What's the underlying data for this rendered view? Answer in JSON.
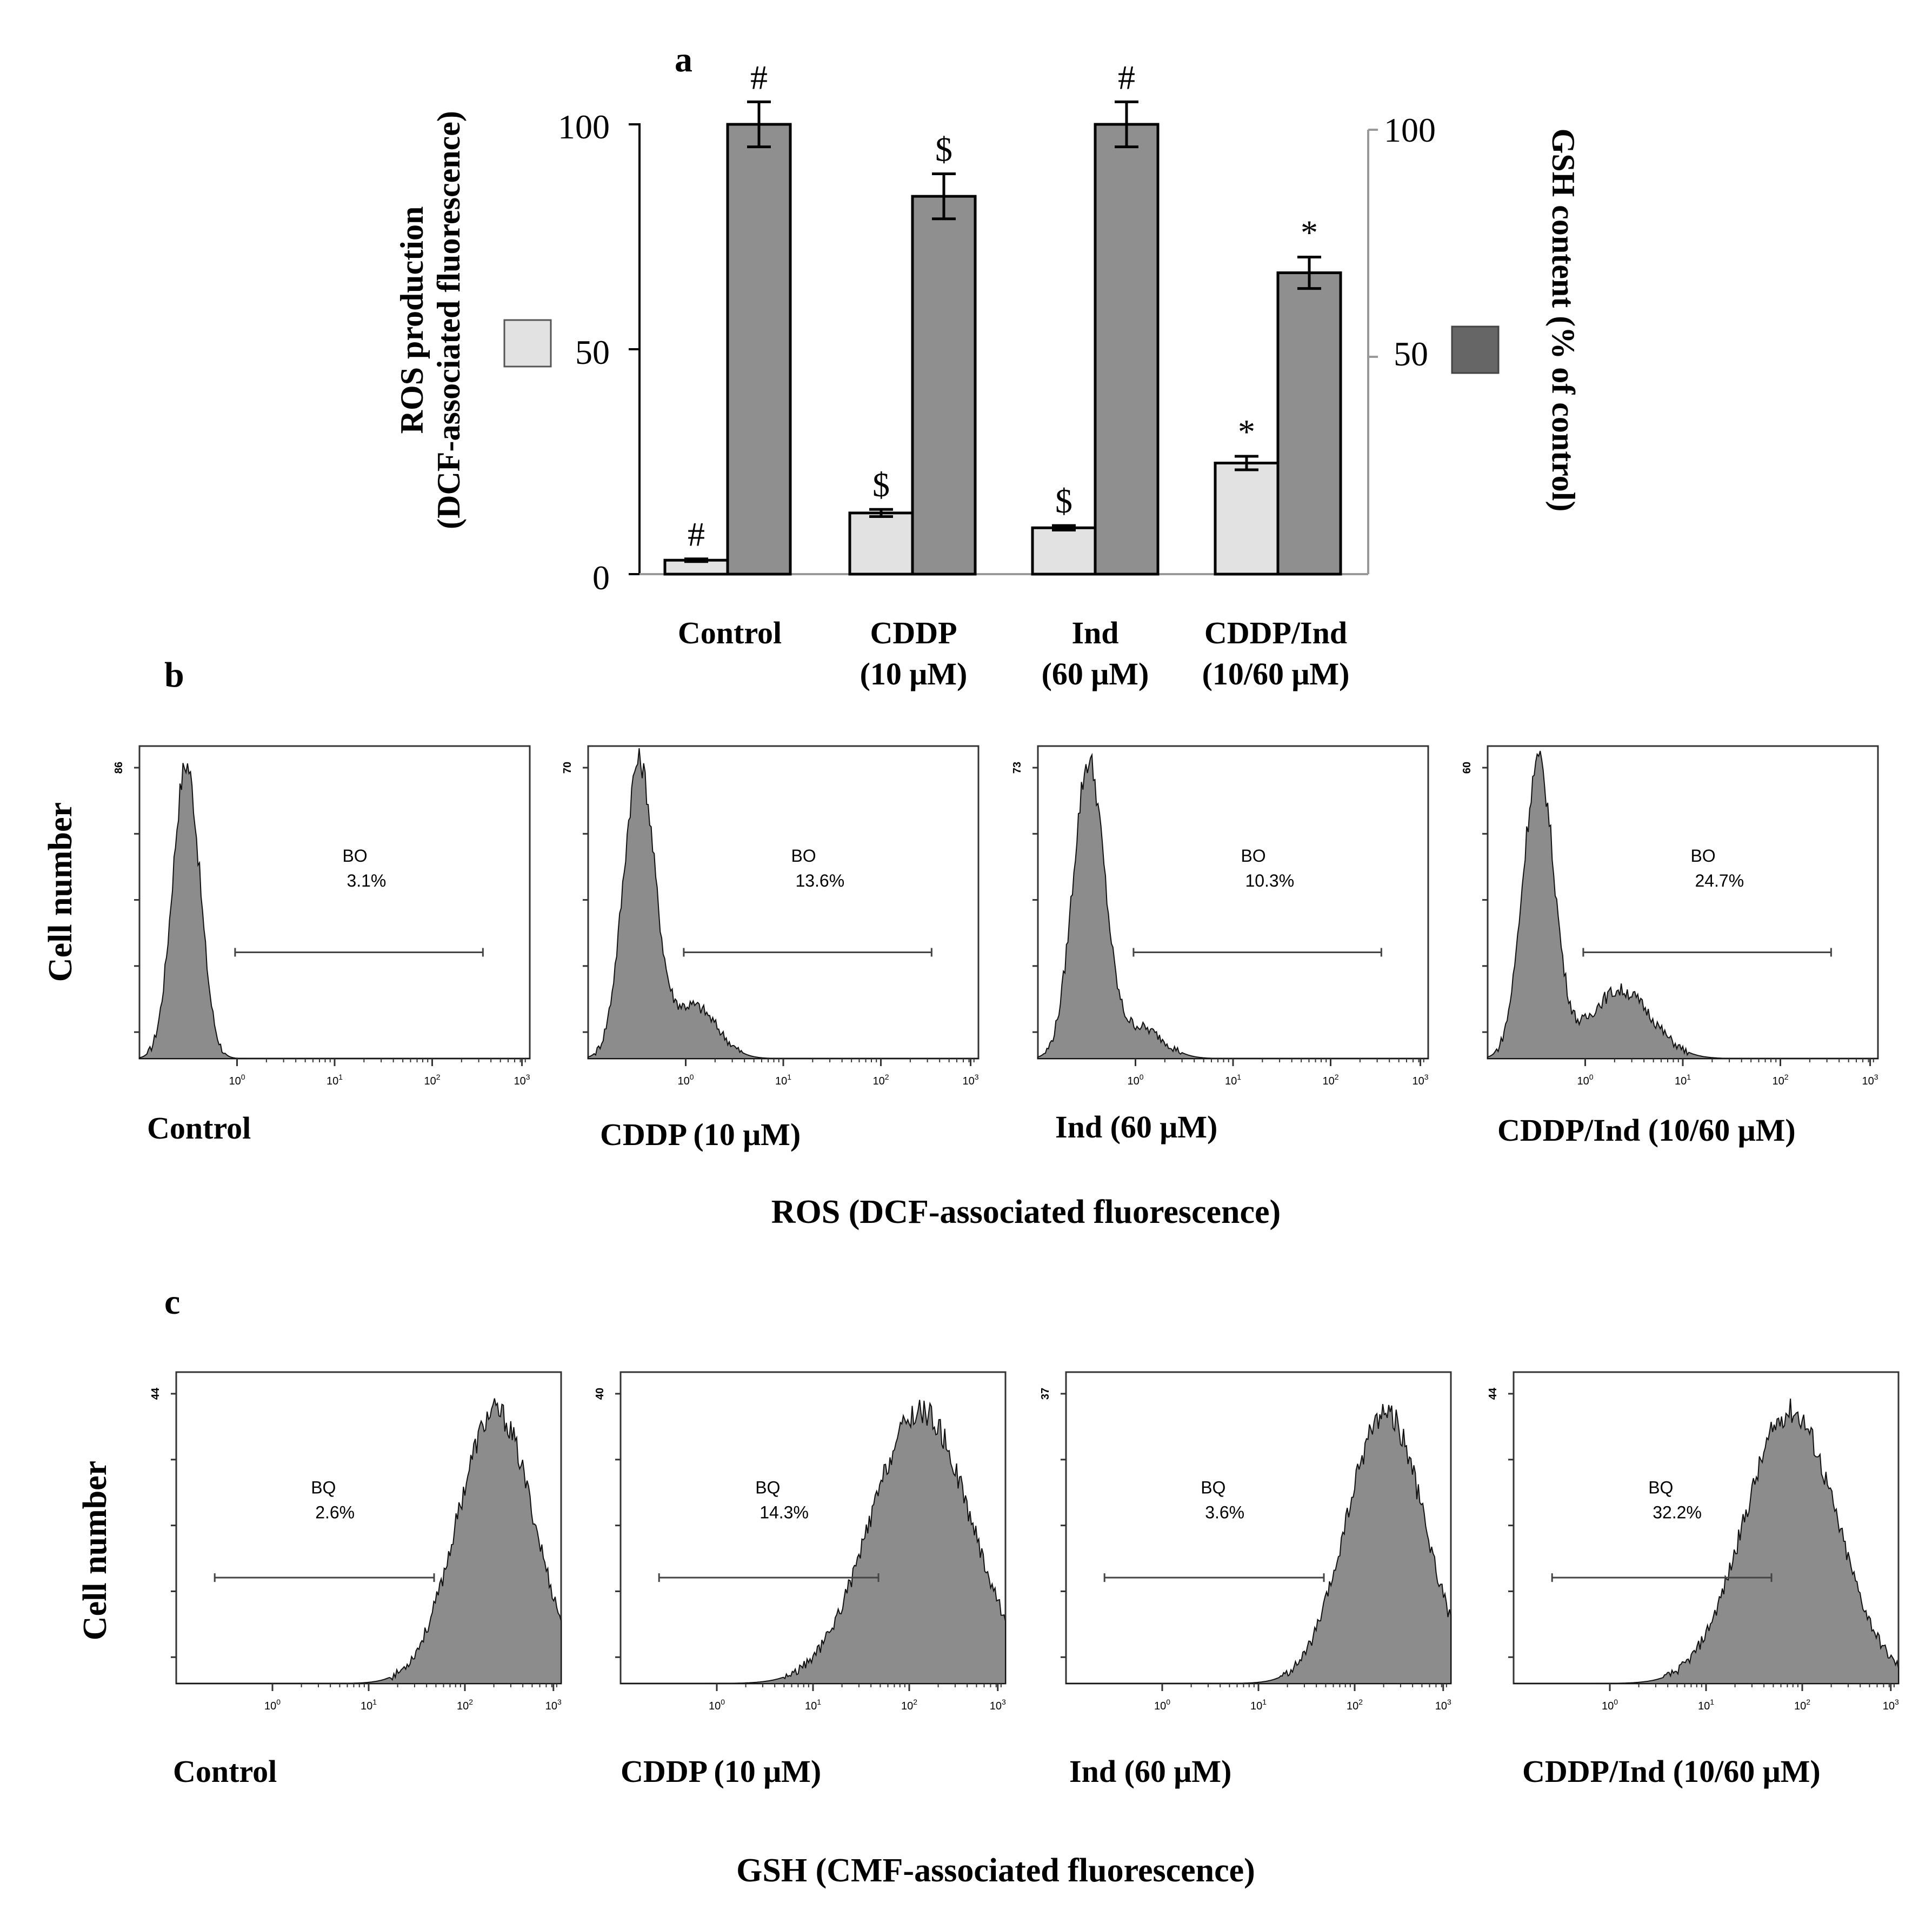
{
  "colors": {
    "ros_bar": "#e2e2e2",
    "gsh_bar": "#8f8f8f",
    "gsh_legend": "#666666",
    "histogram_fill": "#8c8c8c",
    "axis": "#000000",
    "right_axis": "#999999"
  },
  "panel_a": {
    "letter": "a",
    "left_axis_label_line1": "ROS production",
    "left_axis_label_line2": "(DCF-associated fluorescence)",
    "right_axis_label": "GSH content (% of control)",
    "left_ticks": [
      "100",
      "50",
      "0"
    ],
    "right_ticks": [
      "100",
      "50"
    ],
    "groups": [
      {
        "label_line1": "Control",
        "label_line2": ""
      },
      {
        "label_line1": "CDDP",
        "label_line2": "(10 μM)"
      },
      {
        "label_line1": "Ind",
        "label_line2": "(60 μM)"
      },
      {
        "label_line1": "CDDP/Ind",
        "label_line2": "(10/60 μM)"
      }
    ],
    "ros_marks": [
      "#",
      "$",
      "$",
      "*"
    ],
    "gsh_marks": [
      "#",
      "$",
      "#",
      "*"
    ]
  },
  "chart_data": [
    {
      "type": "bar",
      "title": "a",
      "categories": [
        "Control",
        "CDDP (10 μM)",
        "Ind (60 μM)",
        "CDDP/Ind (10/60 μM)"
      ],
      "series": [
        {
          "name": "ROS production (DCF-associated fluorescence)",
          "axis": "left",
          "values": [
            3.1,
            13.6,
            10.3,
            24.7
          ],
          "errors": [
            0.3,
            0.8,
            0.5,
            1.5
          ],
          "annotations": [
            "#",
            "$",
            "$",
            "*"
          ]
        },
        {
          "name": "GSH content (% of control)",
          "axis": "right",
          "values": [
            100,
            84,
            100,
            67
          ],
          "errors": [
            5,
            5,
            5,
            3.5
          ],
          "annotations": [
            "#",
            "$",
            "#",
            "*"
          ]
        }
      ],
      "ylabel": "ROS production (DCF-associated fluorescence)",
      "y2label": "GSH content (% of control)",
      "ylim": [
        0,
        100
      ],
      "y2lim": [
        0,
        100
      ]
    },
    {
      "type": "histogram",
      "panel": "b",
      "xlabel": "ROS (DCF-associated fluorescence)",
      "ylabel": "Cell number",
      "x_scale": "log",
      "x_ticks": [
        "10^0",
        "10^1",
        "10^2",
        "10^3"
      ],
      "gate_name": "BO",
      "samples": [
        {
          "name": "Control",
          "y_max": 86,
          "gate_percent": "3.1%"
        },
        {
          "name": "CDDP (10 μM)",
          "y_max": 70,
          "gate_percent": "13.6%"
        },
        {
          "name": "Ind (60 μM)",
          "y_max": 73,
          "gate_percent": "10.3%"
        },
        {
          "name": "CDDP/Ind (10/60 μM)",
          "y_max": 60,
          "gate_percent": "24.7%"
        }
      ]
    },
    {
      "type": "histogram",
      "panel": "c",
      "xlabel": "GSH (CMF-associated fluorescence)",
      "ylabel": "Cell number",
      "x_scale": "log",
      "x_ticks": [
        "10^0",
        "10^1",
        "10^2",
        "10^3"
      ],
      "gate_name": "BQ",
      "samples": [
        {
          "name": "Control",
          "y_max": 44,
          "gate_percent": "2.6%"
        },
        {
          "name": "CDDP (10 μM)",
          "y_max": 40,
          "gate_percent": "14.3%"
        },
        {
          "name": "Ind (60 μM)",
          "y_max": 37,
          "gate_percent": "3.6%"
        },
        {
          "name": "CDDP/Ind (10/60 μM)",
          "y_max": 44,
          "gate_percent": "32.2%"
        }
      ]
    }
  ],
  "panel_b": {
    "letter": "b",
    "ylabel": "Cell number",
    "xlabel": "ROS (DCF-associated fluorescence)",
    "gate_name": "BO",
    "tick_base": "10",
    "tick_exps": [
      "0",
      "1",
      "2",
      "3"
    ],
    "hists": [
      {
        "name": "Control",
        "ymax": "86",
        "percent": "3.1%"
      },
      {
        "name": "CDDP (10 μM)",
        "ymax": "70",
        "percent": "13.6%"
      },
      {
        "name": "Ind (60 μM)",
        "ymax": "73",
        "percent": "10.3%"
      },
      {
        "name": "CDDP/Ind (10/60 μM)",
        "ymax": "60",
        "percent": "24.7%"
      }
    ]
  },
  "panel_c": {
    "letter": "c",
    "ylabel": "Cell number",
    "xlabel": "GSH (CMF-associated fluorescence)",
    "gate_name": "BQ",
    "tick_base": "10",
    "tick_exps": [
      "0",
      "1",
      "2",
      "3"
    ],
    "hists": [
      {
        "name": "Control",
        "ymax": "44",
        "percent": "2.6%"
      },
      {
        "name": "CDDP (10 μM)",
        "ymax": "40",
        "percent": "14.3%"
      },
      {
        "name": "Ind (60 μM)",
        "ymax": "37",
        "percent": "3.6%"
      },
      {
        "name": "CDDP/Ind (10/60 μM)",
        "ymax": "44",
        "percent": "32.2%"
      }
    ]
  }
}
